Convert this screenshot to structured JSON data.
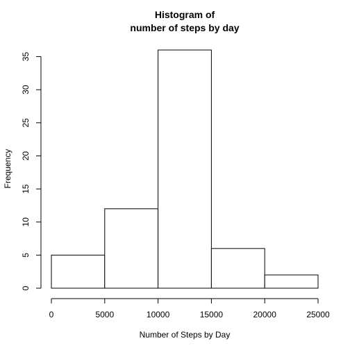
{
  "chart_data": {
    "type": "histogram",
    "title": [
      "Histogram of",
      "number of steps by day"
    ],
    "xlabel": "Number of Steps by Day",
    "ylabel": "Frequency",
    "bins": [
      {
        "start": 0,
        "end": 5000,
        "count": 5
      },
      {
        "start": 5000,
        "end": 10000,
        "count": 12
      },
      {
        "start": 10000,
        "end": 15000,
        "count": 36
      },
      {
        "start": 15000,
        "end": 20000,
        "count": 6
      },
      {
        "start": 20000,
        "end": 25000,
        "count": 2
      }
    ],
    "xlim": [
      0,
      25000
    ],
    "ylim": [
      0,
      36
    ],
    "x_ticks": [
      0,
      5000,
      10000,
      15000,
      20000,
      25000
    ],
    "y_ticks": [
      0,
      5,
      10,
      15,
      20,
      25,
      30,
      35
    ],
    "x_tick_labels": [
      "0",
      "5000",
      "10000",
      "15000",
      "20000",
      "25000"
    ],
    "y_tick_labels": [
      "0",
      "5",
      "10",
      "15",
      "20",
      "25",
      "30",
      "35"
    ],
    "bar_fill": "#ffffff",
    "bar_stroke": "#000000",
    "grid": false,
    "legend": "none"
  }
}
